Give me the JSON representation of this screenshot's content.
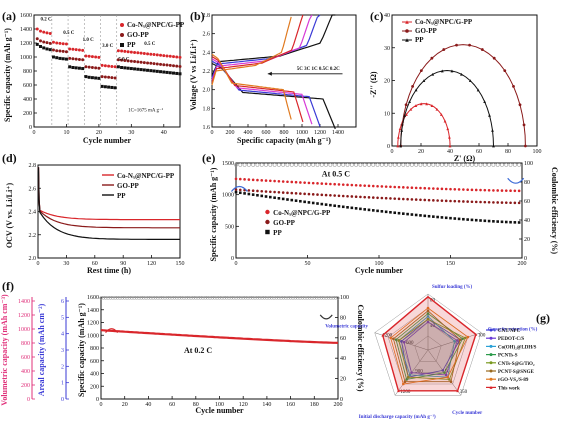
{
  "chart_data": [
    {
      "panel": "(a)",
      "type": "scatter",
      "xlabel": "Cycle number",
      "ylabel": "Specific capacity (mAh g⁻¹)",
      "xlim": [
        0,
        45
      ],
      "ylim": [
        0,
        1600
      ],
      "xticks": [
        0,
        10,
        20,
        30,
        40
      ],
      "yticks": [
        0,
        200,
        400,
        600,
        800,
        1000,
        1200,
        1400,
        1600
      ],
      "rate_labels": [
        "0.2 C",
        "0.5 C",
        "1.0 C",
        "3.0 C",
        "5.0 C",
        "0.5 C"
      ],
      "annotation": "1C=1675 mA g⁻¹",
      "series": [
        {
          "name": "Co-Nₓ@NPC/G-PP",
          "color": "#d9262b",
          "marker": "circle",
          "y": [
            1400,
            1370,
            1355,
            1345,
            1335,
            1210,
            1200,
            1195,
            1190,
            1185,
            1115,
            1110,
            1105,
            1100,
            1095,
            1015,
            1010,
            1005,
            1000,
            995,
            880,
            875,
            870,
            865,
            860,
            1090,
            1085,
            1080,
            1075,
            1070,
            1065,
            1060,
            1055,
            1050,
            1045,
            1040,
            1035,
            1030,
            1025,
            1020,
            1015,
            1010,
            1005,
            1000,
            995
          ]
        },
        {
          "name": "GO-PP",
          "color": "#8a1a1a",
          "marker": "circle",
          "y": [
            1260,
            1230,
            1215,
            1205,
            1195,
            1100,
            1090,
            1085,
            1080,
            1075,
            980,
            975,
            970,
            965,
            960,
            860,
            855,
            850,
            845,
            840,
            720,
            715,
            710,
            705,
            700,
            960,
            955,
            950,
            945,
            940,
            935,
            930,
            925,
            920,
            915,
            910,
            905,
            900,
            895,
            890,
            885,
            880,
            875,
            870,
            865
          ]
        },
        {
          "name": "PP",
          "color": "#111111",
          "marker": "square",
          "y": [
            1180,
            1150,
            1130,
            1115,
            1105,
            1000,
            990,
            980,
            975,
            970,
            860,
            850,
            845,
            840,
            835,
            720,
            710,
            705,
            700,
            695,
            580,
            575,
            570,
            565,
            560,
            860,
            850,
            845,
            840,
            835,
            830,
            825,
            820,
            815,
            810,
            805,
            800,
            795,
            790,
            785,
            780,
            775,
            770,
            765,
            760
          ]
        }
      ]
    },
    {
      "panel": "(b)",
      "type": "line",
      "xlabel": "Specific capacity (mAh g⁻¹)",
      "ylabel": "Voltage (V vs Li/Li⁺)",
      "xlim": [
        0,
        1600
      ],
      "ylim": [
        1.6,
        2.8
      ],
      "xticks": [
        0,
        200,
        400,
        600,
        800,
        1000,
        1200,
        1400
      ],
      "yticks": [
        1.6,
        1.8,
        2.0,
        2.2,
        2.4,
        2.6,
        2.8
      ],
      "arrow_label": "5C 3C 1C 0.5C 0.2C",
      "curves": [
        {
          "rate": "0.2C",
          "capacity": 1370,
          "color": "#111111"
        },
        {
          "rate": "0.5C",
          "capacity": 1200,
          "color": "#3a3ad6"
        },
        {
          "rate": "1C",
          "capacity": 1110,
          "color": "#d63ad6"
        },
        {
          "rate": "3C",
          "capacity": 1010,
          "color": "#d9262b"
        },
        {
          "rate": "5C",
          "capacity": 880,
          "color": "#e07a20"
        }
      ]
    },
    {
      "panel": "(c)",
      "type": "scatter",
      "xlabel": "Z' (Ω)",
      "ylabel": "-Z'' (Ω)",
      "xlim": [
        0,
        100
      ],
      "ylim": [
        0,
        40
      ],
      "xticks": [
        0,
        20,
        40,
        60,
        80,
        100
      ],
      "yticks": [
        0,
        10,
        20,
        30,
        40
      ],
      "series": [
        {
          "name": "Co-Nₓ@NPC/G-PP",
          "color": "#d9262b",
          "r0": 4,
          "r1": 40
        },
        {
          "name": "GO-PP",
          "color": "#8a1a1a",
          "r0": 6,
          "r1": 92
        },
        {
          "name": "PP",
          "color": "#111111",
          "r0": 6,
          "r1": 70
        }
      ]
    },
    {
      "panel": "(d)",
      "type": "line",
      "xlabel": "Rest time (h)",
      "ylabel": "OCV (V vs. Li/Li⁺)",
      "xlim": [
        0,
        150
      ],
      "ylim": [
        2.0,
        2.8
      ],
      "xticks": [
        0,
        30,
        60,
        90,
        120,
        150
      ],
      "yticks": [
        2.0,
        2.2,
        2.4,
        2.6,
        2.8
      ],
      "series": [
        {
          "name": "Co-Nₓ@NPC/G-PP",
          "color": "#d9262b",
          "final": 2.33
        },
        {
          "name": "GO-PP",
          "color": "#8a1a1a",
          "final": 2.26
        },
        {
          "name": "PP",
          "color": "#111111",
          "final": 2.16
        }
      ]
    },
    {
      "panel": "(e)",
      "type": "scatter",
      "xlabel": "Cycle number",
      "ylabel": "Specific capacity (mAh g⁻¹)",
      "y2label": "Coulombic efficiency (%)",
      "xlim": [
        0,
        200
      ],
      "ylim": [
        0,
        1500
      ],
      "y2lim": [
        0,
        100
      ],
      "xticks": [
        0,
        50,
        100,
        150,
        200
      ],
      "yticks": [
        0,
        500,
        1000,
        1500
      ],
      "y2ticks": [
        0,
        20,
        40,
        60,
        80,
        100
      ],
      "annotation": "At 0.5 C",
      "series": [
        {
          "name": "Co-Nₓ@NPC/G-PP",
          "color": "#d9262b",
          "start": 1250,
          "end": 1060
        },
        {
          "name": "GO-PP",
          "color": "#8a1a1a",
          "start": 1080,
          "end": 870
        },
        {
          "name": "PP",
          "color": "#111111",
          "start": 1040,
          "end": 560
        },
        {
          "name": "CE",
          "color": "#999999",
          "value": 98
        }
      ]
    },
    {
      "panel": "(f)",
      "type": "scatter",
      "xlabel": "Cycle number",
      "ylabel": "Specific capacity (mAh g⁻¹)",
      "y2label": "Coulombic efficiency (%)",
      "extra_axes": [
        {
          "label": "Volumetric capacity (mAh cm⁻³)",
          "color": "#e0307a",
          "ticks": [
            0,
            200,
            400,
            600,
            800,
            1000,
            1200,
            1400
          ]
        },
        {
          "label": "Areal capacity (mAh cm⁻²)",
          "color": "#3a3ad6",
          "ticks": [
            0,
            1,
            2,
            3,
            4,
            5,
            6
          ]
        }
      ],
      "xlim": [
        0,
        200
      ],
      "ylim": [
        0,
        1600
      ],
      "y2lim": [
        0,
        100
      ],
      "xticks": [
        0,
        20,
        40,
        60,
        80,
        100,
        120,
        140,
        160,
        180,
        200
      ],
      "yticks": [
        0,
        200,
        400,
        600,
        800,
        1000,
        1200,
        1400,
        1600
      ],
      "y2ticks": [
        0,
        20,
        40,
        60,
        80,
        100
      ],
      "annotation": "At 0.2 C",
      "series": [
        {
          "name": "Capacity",
          "color": "#d9262b",
          "start": 1080,
          "end": 880
        },
        {
          "name": "CE",
          "color": "#999999",
          "value": 99
        }
      ]
    },
    {
      "panel": "(g)",
      "type": "radar",
      "axes": [
        "Sulfur loading (%)",
        "Capacity retention (%)",
        "Cycle number",
        "Initial discharge capacity (mAh g⁻¹)",
        "Volumetric capacity"
      ],
      "axis_ticks": [
        [
          "40",
          "80"
        ],
        [
          "70",
          "100"
        ],
        [
          "50",
          "350"
        ],
        [
          "900",
          "1200"
        ],
        [
          "600",
          "1200"
        ]
      ],
      "legend": [
        {
          "name": "CNT/NPC",
          "color": "#3a3ad6"
        },
        {
          "name": "PEDOT-C/S",
          "color": "#6a3ad6"
        },
        {
          "name": "Co(OH)₂@LDH/S",
          "color": "#2aa0d6"
        },
        {
          "name": "PCNTs-S",
          "color": "#2a9a4a"
        },
        {
          "name": "CNTs-S@G/TiO₂",
          "color": "#7a9a20"
        },
        {
          "name": "PCNT-S@SNGE",
          "color": "#9a6a20"
        },
        {
          "name": "rGO-VS₂/S-89",
          "color": "#e07a20"
        },
        {
          "name": "This work",
          "color": "#d9262b"
        }
      ],
      "series": [
        {
          "name": "CNT/NPC",
          "values": [
            0.55,
            0.6,
            0.45,
            0.6,
            0.5
          ]
        },
        {
          "name": "PEDOT-C/S",
          "values": [
            0.5,
            0.55,
            0.55,
            0.5,
            0.45
          ]
        },
        {
          "name": "Co(OH)₂@LDH/S",
          "values": [
            0.6,
            0.5,
            0.6,
            0.55,
            0.55
          ]
        },
        {
          "name": "PCNTs-S",
          "values": [
            0.65,
            0.65,
            0.5,
            0.65,
            0.6
          ]
        },
        {
          "name": "CNTs-S@G/TiO₂",
          "values": [
            0.55,
            0.7,
            0.65,
            0.6,
            0.55
          ]
        },
        {
          "name": "PCNT-S@SNGE",
          "values": [
            0.7,
            0.6,
            0.7,
            0.7,
            0.65
          ]
        },
        {
          "name": "rGO-VS₂/S-89",
          "values": [
            0.75,
            0.75,
            0.6,
            0.75,
            0.7
          ]
        },
        {
          "name": "This work",
          "values": [
            0.95,
            0.9,
            0.9,
            0.9,
            0.85
          ]
        }
      ]
    }
  ]
}
